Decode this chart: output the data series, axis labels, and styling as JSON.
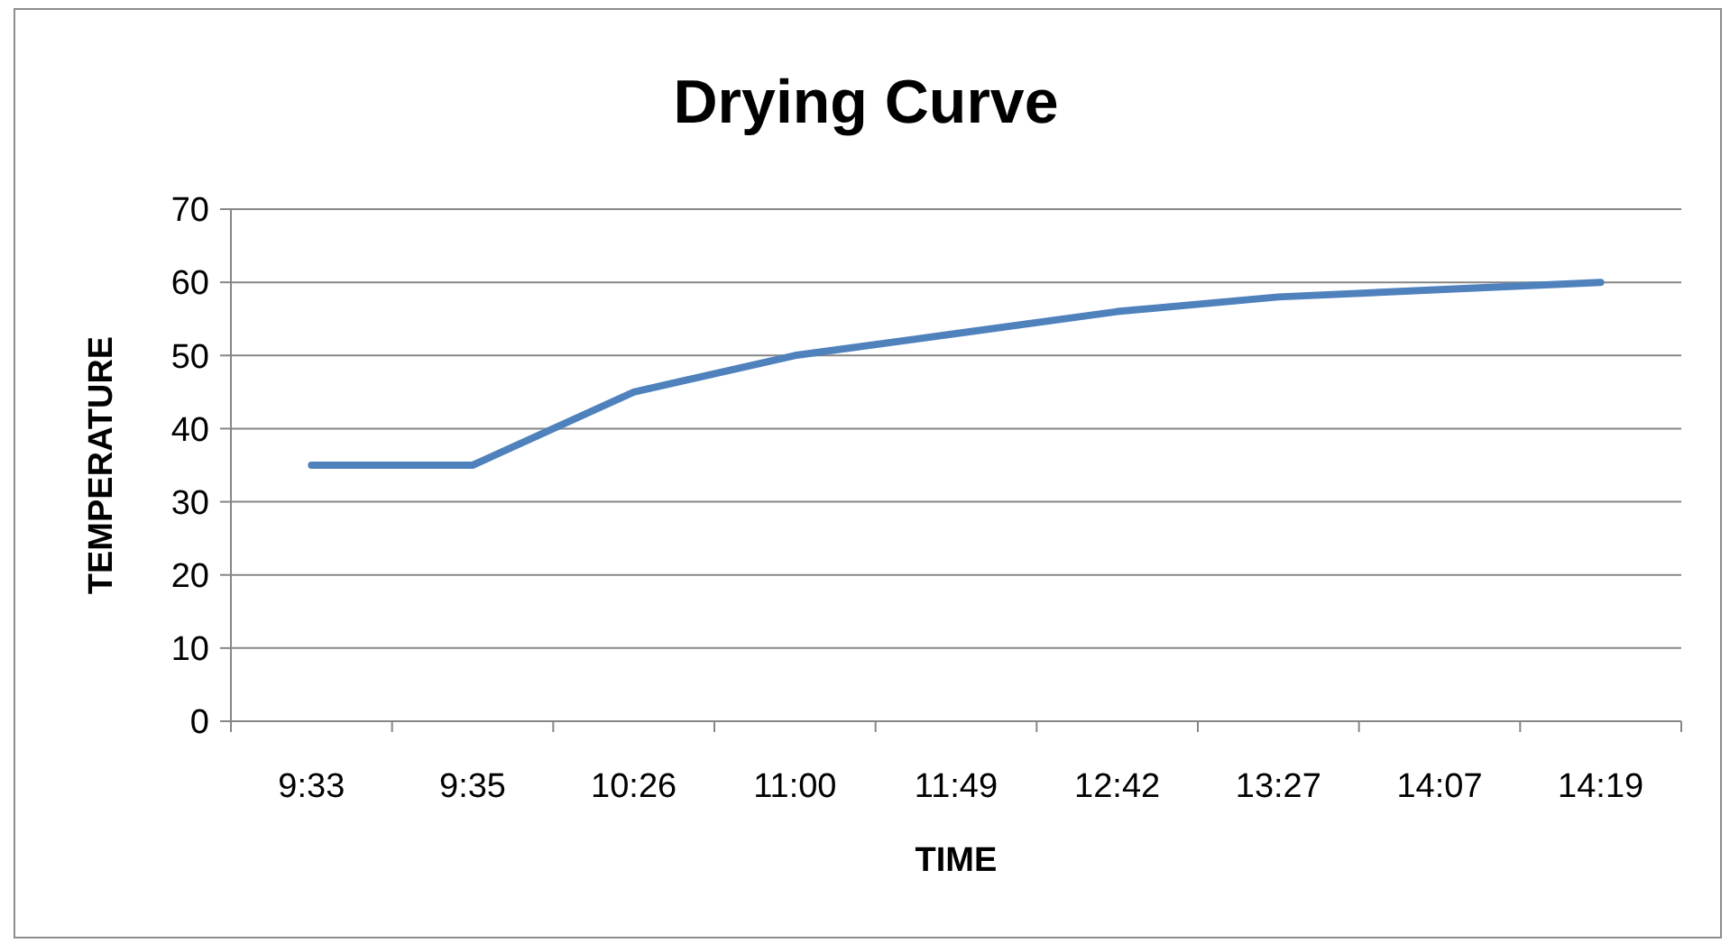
{
  "chart_data": {
    "type": "line",
    "title": "Drying Curve",
    "xlabel": "TIME",
    "ylabel": "TEMPERATURE",
    "categories": [
      "9:33",
      "9:35",
      "10:26",
      "11:00",
      "11:49",
      "12:42",
      "13:27",
      "14:07",
      "14:19"
    ],
    "series": [
      {
        "color": "#4f81bd",
        "values": [
          35,
          35,
          45,
          50,
          53,
          56,
          58,
          59,
          60
        ]
      }
    ],
    "ylim": [
      0,
      70
    ],
    "yticks": [
      0,
      10,
      20,
      30,
      40,
      50,
      60,
      70
    ],
    "grid": "y",
    "marker": "none",
    "line_style": "solid"
  }
}
